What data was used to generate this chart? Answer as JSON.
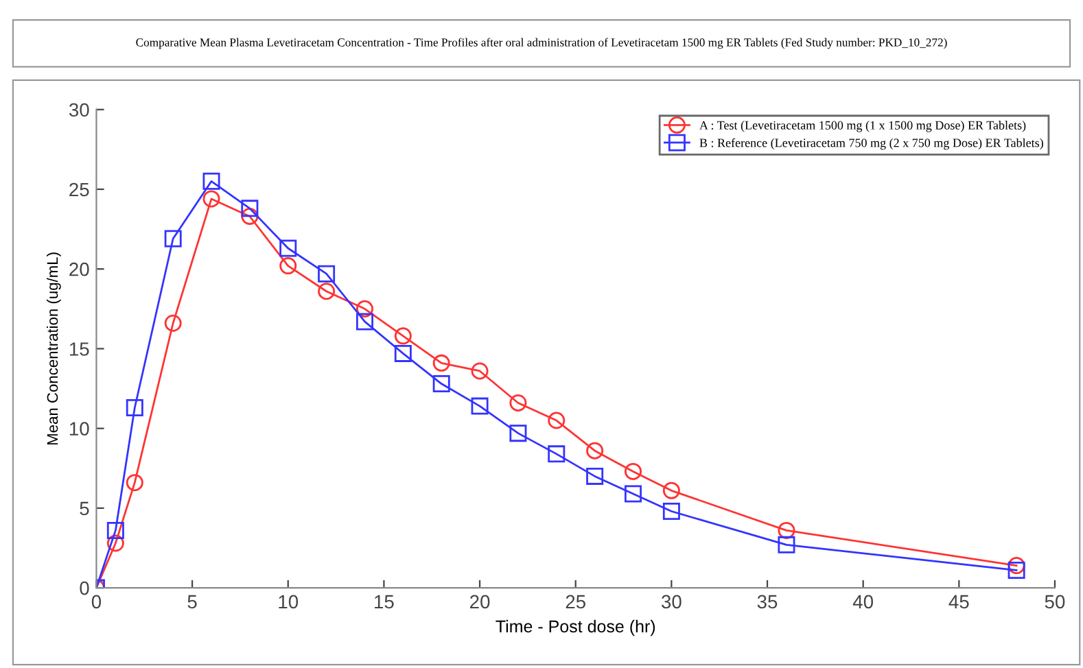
{
  "chart_data": {
    "type": "line",
    "title": "Comparative Mean Plasma Levetiracetam Concentration - Time Profiles after oral administration of Levetiracetam 1500 mg ER Tablets (Fed Study number: PKD_10_272)",
    "xlabel": "Time - Post dose (hr)",
    "ylabel": "Mean Concentration (ug/mL)",
    "x": [
      0,
      1,
      2,
      4,
      6,
      8,
      10,
      12,
      14,
      16,
      18,
      20,
      22,
      24,
      26,
      28,
      30,
      36,
      48
    ],
    "series": [
      {
        "name": "A : Test (Levetiracetam 1500 mg (1 x 1500 mg Dose) ER Tablets)",
        "color": "#ff3333",
        "marker": "circle",
        "values": [
          0,
          2.8,
          6.6,
          16.6,
          24.4,
          23.3,
          20.2,
          18.6,
          17.5,
          15.8,
          14.1,
          13.6,
          11.6,
          10.5,
          8.6,
          7.3,
          6.1,
          3.6,
          1.4
        ]
      },
      {
        "name": "B : Reference (Levetiracetam 750 mg (2 x 750 mg Dose) ER Tablets)",
        "color": "#3333ff",
        "marker": "square",
        "values": [
          0,
          3.6,
          11.3,
          21.9,
          25.5,
          23.8,
          21.3,
          19.7,
          16.7,
          14.7,
          12.8,
          11.4,
          9.7,
          8.4,
          7.0,
          5.9,
          4.8,
          2.7,
          1.1
        ]
      }
    ],
    "xlim": [
      0,
      50
    ],
    "xticks": [
      0,
      5,
      10,
      15,
      20,
      25,
      30,
      35,
      40,
      45,
      50
    ],
    "ylim": [
      0,
      30
    ],
    "yticks": [
      0,
      5,
      10,
      15,
      20,
      25,
      30
    ],
    "grid": false,
    "legend": "top right",
    "line_style": "solid"
  }
}
